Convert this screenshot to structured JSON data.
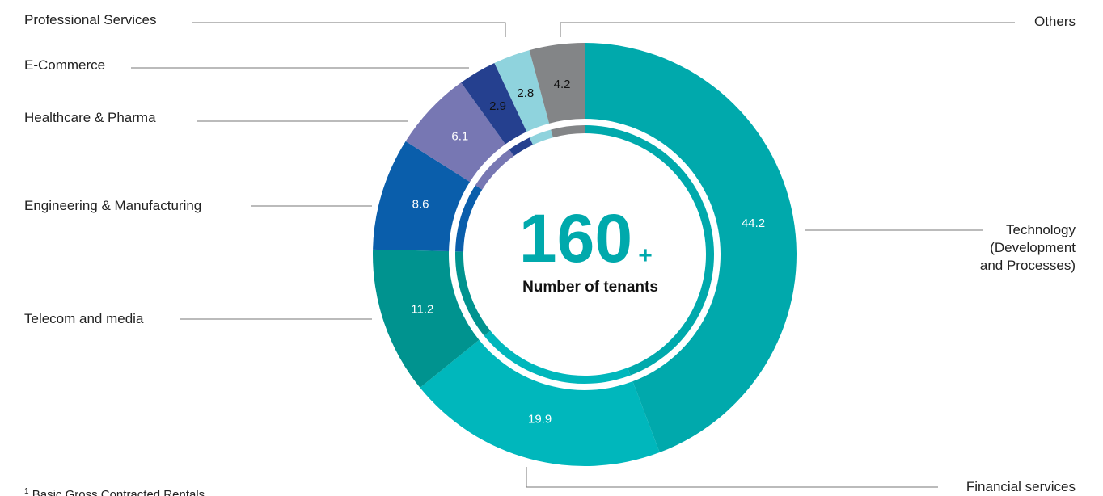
{
  "chart_data": {
    "type": "donut",
    "center_value": "160",
    "center_suffix": "+",
    "center_label": "Number of tenants",
    "categories": [
      "Technology (Development and Processes)",
      "Financial services",
      "Telecom and media",
      "Engineering & Manufacturing",
      "Healthcare & Pharma",
      "E-Commerce",
      "Professional Services",
      "Others"
    ],
    "values": [
      44.2,
      19.9,
      11.2,
      8.6,
      6.1,
      2.9,
      2.8,
      4.2
    ],
    "colors": [
      "#00a9ac",
      "#00b7bc",
      "#00938f",
      "#0a5eab",
      "#7777b3",
      "#25408f",
      "#8fd3dd",
      "#838587"
    ],
    "footnote_mark": "1",
    "footnote": "Basic Gross Contracted Rentals"
  }
}
